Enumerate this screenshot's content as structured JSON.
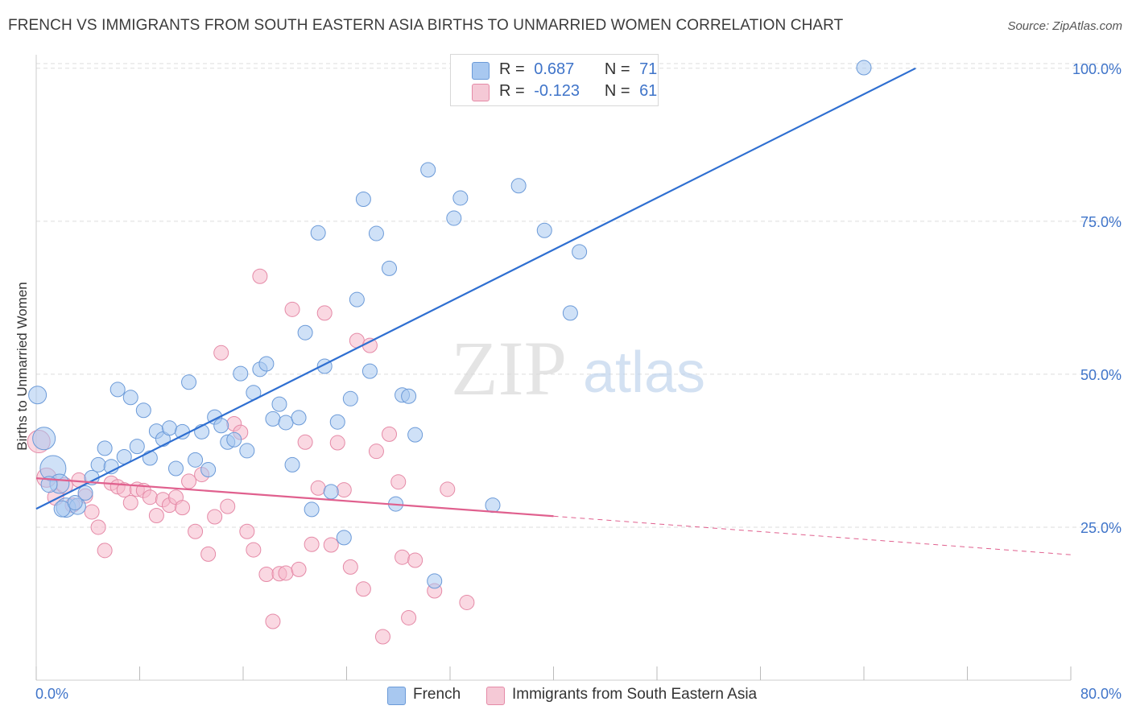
{
  "title": "FRENCH VS IMMIGRANTS FROM SOUTH EASTERN ASIA BIRTHS TO UNMARRIED WOMEN CORRELATION CHART",
  "source": "Source: ZipAtlas.com",
  "watermark": {
    "zip": "ZIP",
    "atlas": "atlas"
  },
  "legend_top": [
    {
      "r_label": "R =",
      "r_value": "0.687",
      "n_label": "N =",
      "n_value": "71"
    },
    {
      "r_label": "R =",
      "r_value": "-0.123",
      "n_label": "N =",
      "n_value": "61"
    }
  ],
  "legend_bottom": [
    "French",
    "Immigrants from South Eastern Asia"
  ],
  "colors": {
    "french_fill": "#a8c8f0",
    "french_stroke": "#6b9ad8",
    "french_line": "#2f6fd1",
    "sea_fill": "#f5b8cb",
    "sea_stroke": "#e58aa7",
    "sea_line": "#e0608e",
    "axis_text": "#3f74c9",
    "grid": "#dddddd"
  },
  "chart_data": {
    "type": "scatter",
    "xlabel": "",
    "ylabel": "Births to Unmarried Women",
    "xlim": [
      0,
      80
    ],
    "ylim": [
      0,
      103
    ],
    "x_tick_labels": [
      "0.0%",
      "80.0%"
    ],
    "y_ticks": [
      25,
      50,
      75,
      100
    ],
    "y_tick_labels": [
      "25.0%",
      "50.0%",
      "75.0%",
      "100.0%"
    ],
    "grid": true,
    "legend_position": "top-center",
    "series": [
      {
        "name": "French",
        "r": 0.687,
        "n": 71,
        "trend": {
          "x": [
            0,
            68
          ],
          "y": [
            28.0,
            100.0
          ]
        },
        "points": [
          [
            0.1,
            46.6,
            11
          ],
          [
            0.6,
            39.5,
            14
          ],
          [
            1.3,
            34.6,
            16
          ],
          [
            1.8,
            32.1,
            12
          ],
          [
            2.3,
            28.2,
            12
          ],
          [
            3.2,
            28.4,
            10
          ],
          [
            3.8,
            30.6,
            9
          ],
          [
            4.3,
            33.1,
            9
          ],
          [
            4.8,
            35.2,
            9
          ],
          [
            5.3,
            37.9,
            9
          ],
          [
            5.8,
            34.9,
            9
          ],
          [
            6.3,
            47.5,
            9
          ],
          [
            6.8,
            36.5,
            9
          ],
          [
            7.3,
            46.2,
            9
          ],
          [
            7.8,
            38.2,
            9
          ],
          [
            8.3,
            44.1,
            9
          ],
          [
            8.8,
            36.3,
            9
          ],
          [
            9.3,
            40.7,
            9
          ],
          [
            9.8,
            39.4,
            9
          ],
          [
            10.3,
            41.2,
            9
          ],
          [
            10.8,
            34.6,
            9
          ],
          [
            11.3,
            40.6,
            9
          ],
          [
            11.8,
            48.7,
            9
          ],
          [
            12.3,
            36.0,
            9
          ],
          [
            12.8,
            40.6,
            9
          ],
          [
            13.3,
            34.4,
            9
          ],
          [
            13.8,
            43.0,
            9
          ],
          [
            14.3,
            41.6,
            9
          ],
          [
            14.8,
            38.9,
            9
          ],
          [
            15.3,
            39.3,
            9
          ],
          [
            15.8,
            50.1,
            9
          ],
          [
            16.3,
            37.5,
            9
          ],
          [
            16.8,
            47.0,
            9
          ],
          [
            17.3,
            50.8,
            9
          ],
          [
            17.8,
            51.7,
            9
          ],
          [
            18.3,
            42.7,
            9
          ],
          [
            18.8,
            45.1,
            9
          ],
          [
            19.3,
            42.1,
            9
          ],
          [
            19.8,
            35.2,
            9
          ],
          [
            20.3,
            42.9,
            9
          ],
          [
            20.8,
            56.8,
            9
          ],
          [
            21.3,
            27.9,
            9
          ],
          [
            21.8,
            73.1,
            9
          ],
          [
            22.3,
            51.3,
            9
          ],
          [
            22.8,
            30.8,
            9
          ],
          [
            23.3,
            42.2,
            9
          ],
          [
            23.8,
            23.3,
            9
          ],
          [
            24.3,
            46.0,
            9
          ],
          [
            24.8,
            62.2,
            9
          ],
          [
            25.3,
            78.6,
            9
          ],
          [
            25.8,
            50.5,
            9
          ],
          [
            26.3,
            73.0,
            9
          ],
          [
            27.3,
            67.3,
            9
          ],
          [
            27.8,
            28.8,
            9
          ],
          [
            28.3,
            46.6,
            9
          ],
          [
            28.8,
            46.4,
            9
          ],
          [
            29.3,
            40.1,
            9
          ],
          [
            30.3,
            83.4,
            9
          ],
          [
            30.8,
            16.2,
            9
          ],
          [
            32.3,
            75.5,
            9
          ],
          [
            32.8,
            78.8,
            9
          ],
          [
            35.3,
            28.6,
            9
          ],
          [
            37.3,
            80.8,
            9
          ],
          [
            39.3,
            73.5,
            9
          ],
          [
            41.3,
            60.0,
            9
          ],
          [
            42.0,
            70.0,
            9
          ],
          [
            64.0,
            100.1,
            9
          ],
          [
            38.0,
            100.1,
            9
          ],
          [
            2.0,
            28.0,
            10
          ],
          [
            3.0,
            29.0,
            9
          ],
          [
            1.0,
            32.0,
            10
          ]
        ]
      },
      {
        "name": "Immigrants from South Eastern Asia",
        "r": -0.123,
        "n": 61,
        "trend": {
          "x": [
            0,
            40
          ],
          "y": [
            33.0,
            26.8
          ]
        },
        "trend_dashed": {
          "x": [
            40,
            80
          ],
          "y": [
            26.8,
            20.5
          ]
        },
        "points": [
          [
            0.2,
            39.0,
            14
          ],
          [
            0.8,
            33.1,
            12
          ],
          [
            1.5,
            29.9,
            10
          ],
          [
            2.2,
            31.8,
            10
          ],
          [
            2.8,
            28.6,
            9
          ],
          [
            3.3,
            32.7,
            9
          ],
          [
            3.8,
            30.1,
            9
          ],
          [
            4.3,
            27.5,
            9
          ],
          [
            4.8,
            25.0,
            9
          ],
          [
            5.3,
            21.2,
            9
          ],
          [
            5.8,
            32.2,
            9
          ],
          [
            6.3,
            31.6,
            9
          ],
          [
            6.8,
            31.1,
            9
          ],
          [
            7.3,
            29.0,
            9
          ],
          [
            7.8,
            31.2,
            9
          ],
          [
            8.3,
            31.0,
            9
          ],
          [
            8.8,
            29.9,
            9
          ],
          [
            9.3,
            26.9,
            9
          ],
          [
            9.8,
            29.5,
            9
          ],
          [
            10.3,
            28.6,
            9
          ],
          [
            10.8,
            29.9,
            9
          ],
          [
            11.3,
            28.2,
            9
          ],
          [
            11.8,
            32.5,
            9
          ],
          [
            12.3,
            24.3,
            9
          ],
          [
            12.8,
            33.6,
            9
          ],
          [
            13.3,
            20.6,
            9
          ],
          [
            13.8,
            26.7,
            9
          ],
          [
            14.3,
            53.5,
            9
          ],
          [
            14.8,
            28.4,
            9
          ],
          [
            15.3,
            41.9,
            9
          ],
          [
            15.8,
            40.5,
            9
          ],
          [
            16.3,
            24.3,
            9
          ],
          [
            16.8,
            21.3,
            9
          ],
          [
            17.3,
            66.0,
            9
          ],
          [
            17.8,
            17.3,
            9
          ],
          [
            18.3,
            9.6,
            9
          ],
          [
            18.8,
            17.4,
            9
          ],
          [
            19.3,
            17.5,
            9
          ],
          [
            19.8,
            60.6,
            9
          ],
          [
            20.3,
            18.1,
            9
          ],
          [
            20.8,
            38.9,
            9
          ],
          [
            21.3,
            22.2,
            9
          ],
          [
            21.8,
            31.4,
            9
          ],
          [
            22.3,
            60.0,
            9
          ],
          [
            22.8,
            22.1,
            9
          ],
          [
            23.3,
            38.8,
            9
          ],
          [
            23.8,
            31.1,
            9
          ],
          [
            24.3,
            18.5,
            9
          ],
          [
            24.8,
            55.5,
            9
          ],
          [
            25.3,
            14.9,
            9
          ],
          [
            25.8,
            54.7,
            9
          ],
          [
            26.3,
            37.4,
            9
          ],
          [
            26.8,
            7.1,
            9
          ],
          [
            27.3,
            40.2,
            9
          ],
          [
            28.3,
            20.1,
            9
          ],
          [
            28.8,
            10.2,
            9
          ],
          [
            29.3,
            19.6,
            9
          ],
          [
            30.8,
            14.6,
            9
          ],
          [
            31.8,
            31.2,
            9
          ],
          [
            33.3,
            12.7,
            9
          ],
          [
            28.0,
            32.4,
            9
          ]
        ]
      }
    ]
  }
}
